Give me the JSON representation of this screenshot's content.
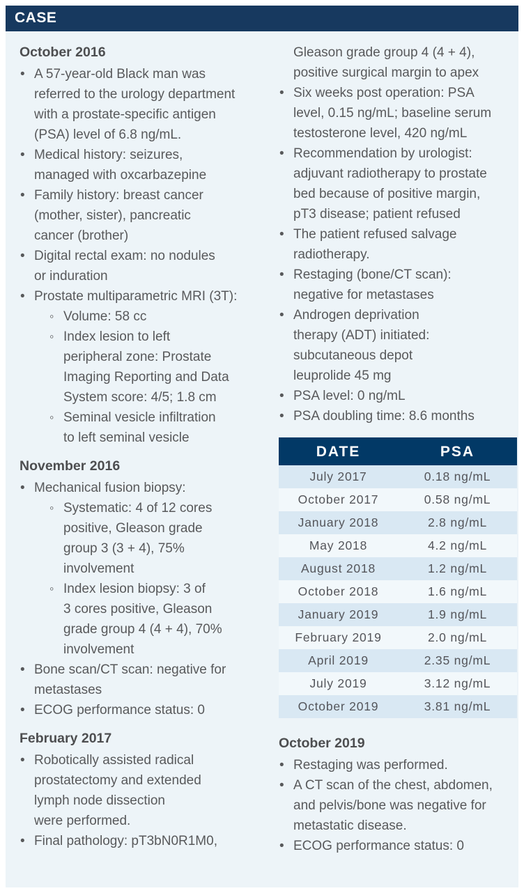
{
  "panel": {
    "title": "CASE"
  },
  "colors": {
    "header_bar": "#17395f",
    "table_header": "#023966",
    "panel_background": "#edf4f8",
    "table_row_blue": "#d9e8f3",
    "table_row_light": "#f2f8fb",
    "body_text": "#58595b",
    "header_text": "#ffffff"
  },
  "columns": {
    "left": {
      "blocks": [
        {
          "type": "heading",
          "text": "October 2016"
        },
        {
          "type": "bullet",
          "level": 1,
          "text": "A 57-year-old Black man was\nreferred to the urology department\nwith a prostate-specific antigen\n(PSA) level of 6.8 ng/mL."
        },
        {
          "type": "bullet",
          "level": 1,
          "text": "Medical history: seizures,\nmanaged with oxcarbazepine"
        },
        {
          "type": "bullet",
          "level": 1,
          "text": "Family history: breast cancer\n(mother, sister), pancreatic\ncancer (brother)"
        },
        {
          "type": "bullet",
          "level": 1,
          "text": "Digital rectal exam: no nodules\nor induration"
        },
        {
          "type": "bullet",
          "level": 1,
          "text": "Prostate multiparametric MRI (3T):"
        },
        {
          "type": "bullet",
          "level": 2,
          "text": "Volume: 58 cc"
        },
        {
          "type": "bullet",
          "level": 2,
          "text": "Index lesion to left\nperipheral zone: Prostate\nImaging Reporting and Data\nSystem score: 4/5; 1.8 cm"
        },
        {
          "type": "bullet",
          "level": 2,
          "text": "Seminal vesicle infiltration\nto left seminal vesicle"
        },
        {
          "type": "heading",
          "text": "November 2016"
        },
        {
          "type": "bullet",
          "level": 1,
          "text": "Mechanical fusion biopsy:"
        },
        {
          "type": "bullet",
          "level": 2,
          "text": "Systematic: 4 of 12 cores\npositive, Gleason grade\ngroup 3 (3 + 4), 75%\ninvolvement"
        },
        {
          "type": "bullet",
          "level": 2,
          "text": "Index lesion biopsy: 3 of\n3 cores positive, Gleason\ngrade group 4 (4 + 4), 70%\ninvolvement"
        },
        {
          "type": "bullet",
          "level": 1,
          "text": "Bone scan/CT scan: negative for\nmetastases"
        },
        {
          "type": "bullet",
          "level": 1,
          "text": "ECOG performance status: 0"
        },
        {
          "type": "heading",
          "text": "February 2017"
        },
        {
          "type": "bullet",
          "level": 1,
          "text": "Robotically assisted radical\nprostatectomy and extended\nlymph node dissection\nwere performed."
        },
        {
          "type": "bullet",
          "level": 1,
          "text": "Final pathology: pT3bN0R1M0,"
        }
      ]
    },
    "right": {
      "blocks_top": [
        {
          "type": "continuation",
          "text": "Gleason grade group 4 (4 + 4),\npositive surgical margin to apex"
        },
        {
          "type": "bullet",
          "level": 1,
          "text": "Six weeks post operation: PSA\nlevel, 0.15 ng/mL; baseline serum\ntestosterone level, 420 ng/mL"
        },
        {
          "type": "bullet",
          "level": 1,
          "text": "Recommendation by urologist:\nadjuvant radiotherapy to prostate\nbed because of positive margin,\npT3 disease; patient refused"
        },
        {
          "type": "bullet",
          "level": 1,
          "text": "The patient refused salvage\nradiotherapy."
        },
        {
          "type": "bullet",
          "level": 1,
          "text": "Restaging (bone/CT scan):\nnegative for metastases"
        },
        {
          "type": "bullet",
          "level": 1,
          "text": "Androgen deprivation\ntherapy (ADT) initiated:\nsubcutaneous depot\nleuprolide 45 mg"
        },
        {
          "type": "bullet",
          "level": 1,
          "text": "PSA level: 0 ng/mL"
        },
        {
          "type": "bullet",
          "level": 1,
          "text": "PSA doubling time: 8.6 months"
        }
      ],
      "blocks_bottom": [
        {
          "type": "heading",
          "text": "October 2019"
        },
        {
          "type": "bullet",
          "level": 1,
          "text": "Restaging was performed."
        },
        {
          "type": "bullet",
          "level": 1,
          "text": "A CT scan of the chest, abdomen,\nand pelvis/bone was negative for\nmetastatic disease."
        },
        {
          "type": "bullet",
          "level": 1,
          "text": "ECOG performance status: 0"
        }
      ]
    }
  },
  "psa_table": {
    "columns": [
      "DATE",
      "PSA"
    ],
    "rows": [
      [
        "July 2017",
        "0.18 ng/mL"
      ],
      [
        "October 2017",
        "0.58 ng/mL"
      ],
      [
        "January 2018",
        "2.8 ng/mL"
      ],
      [
        "May 2018",
        "4.2 ng/mL"
      ],
      [
        "August 2018",
        "1.2 ng/mL"
      ],
      [
        "October 2018",
        "1.6 ng/mL"
      ],
      [
        "January 2019",
        "1.9 ng/mL"
      ],
      [
        "February 2019",
        "2.0 ng/mL"
      ],
      [
        "April 2019",
        "2.35 ng/mL"
      ],
      [
        "July 2019",
        "3.12 ng/mL"
      ],
      [
        "October 2019",
        "3.81 ng/mL"
      ]
    ]
  }
}
